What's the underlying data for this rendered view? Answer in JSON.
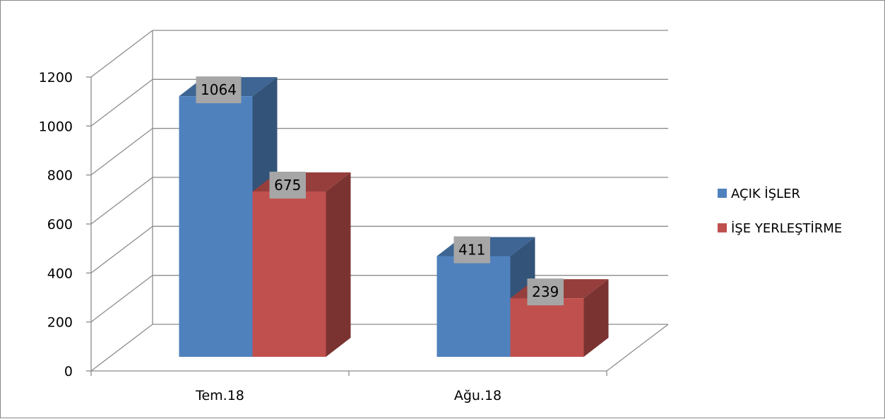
{
  "chart_data": {
    "type": "bar",
    "style": "3d-clustered-column",
    "categories": [
      "Tem.18",
      "Ağu.18"
    ],
    "series": [
      {
        "name": "AÇIK İŞLER",
        "values": [
          1064,
          411
        ],
        "color": "#4F81BD"
      },
      {
        "name": "İŞE YERLEŞTİRME",
        "values": [
          675,
          239
        ],
        "color": "#C0504D"
      }
    ],
    "ylim": [
      0,
      1200
    ],
    "yticks": [
      0,
      200,
      400,
      600,
      800,
      1000,
      1200
    ],
    "grid": true,
    "legend": "right",
    "data_labels": true
  }
}
